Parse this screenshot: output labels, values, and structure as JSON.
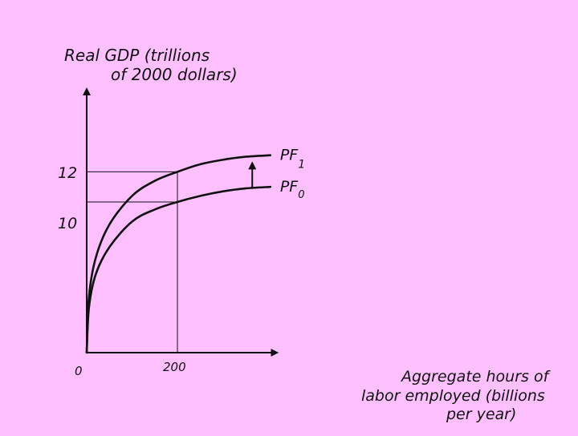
{
  "colors": {
    "background": "#ffc0ff",
    "ink": "#111111"
  },
  "chart_data": {
    "type": "line",
    "title": "",
    "ylabel_line1": "Real GDP (trillions",
    "ylabel_line2": "of 2000 dollars)",
    "xlabel_line1": "Aggregate hours of",
    "xlabel_line2": "labor employed (billions",
    "xlabel_line3": "per year)",
    "origin_label": "0",
    "x_ticks": [
      {
        "value": 200,
        "label": "200"
      }
    ],
    "y_ticks": [
      {
        "value": 10,
        "label": "10"
      },
      {
        "value": 12,
        "label": "12"
      }
    ],
    "xlim": [
      0,
      420
    ],
    "ylim": [
      0,
      17.5
    ],
    "series": [
      {
        "name": "PF1",
        "label_main": "PF",
        "label_sub": "1",
        "x": [
          0,
          5,
          20,
          50,
          100,
          150,
          200,
          250,
          300,
          350,
          405
        ],
        "y": [
          0,
          3.7,
          6.3,
          8.5,
          10.4,
          11.4,
          12,
          12.5,
          12.8,
          13,
          13.1
        ]
      },
      {
        "name": "PF0",
        "label_main": "PF",
        "label_sub": "0",
        "x": [
          0,
          5,
          20,
          50,
          100,
          150,
          200,
          250,
          300,
          350,
          405
        ],
        "y": [
          0,
          3.0,
          5.2,
          7.0,
          8.7,
          9.5,
          10,
          10.4,
          10.7,
          10.9,
          11.0
        ]
      }
    ],
    "guides": [
      {
        "x": 200,
        "y": 12
      },
      {
        "x": 200,
        "y": 10
      }
    ],
    "shift_arrow": {
      "x": 365,
      "from_y": 10.9,
      "to_y": 12.8
    }
  }
}
